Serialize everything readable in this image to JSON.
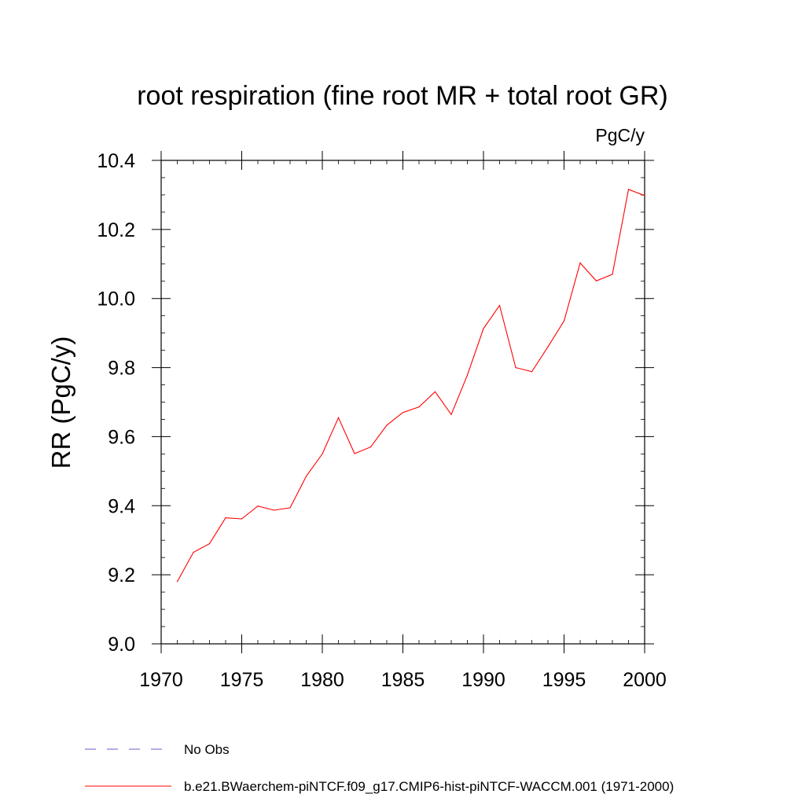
{
  "chart_data": {
    "type": "line",
    "title": "root respiration (fine root MR + total root GR)",
    "units": "PgC/y",
    "xlabel": "",
    "ylabel": "RR  (PgC/y)",
    "xlim": [
      1970,
      2000
    ],
    "ylim": [
      9.0,
      10.4
    ],
    "x_ticks": [
      1970,
      1975,
      1980,
      1985,
      1990,
      1995,
      2000
    ],
    "x_tick_labels": [
      "1970",
      "1975",
      "1980",
      "1985",
      "1990",
      "1995",
      "2000"
    ],
    "y_ticks": [
      9.0,
      9.2,
      9.4,
      9.6,
      9.8,
      10.0,
      10.2,
      10.4
    ],
    "y_tick_labels": [
      "9.0",
      "9.2",
      "9.4",
      "9.6",
      "9.8",
      "10.0",
      "10.2",
      "10.4"
    ],
    "grid": false,
    "legend_position": "bottom",
    "series": [
      {
        "name": "b.e21.BWaerchem-piNTCF.f09_g17.CMIP6-hist-piNTCF-WACCM.001 (1971-2000)",
        "color": "#ff0000",
        "line_style": "solid",
        "x": [
          1971,
          1972,
          1973,
          1974,
          1975,
          1976,
          1977,
          1978,
          1979,
          1980,
          1981,
          1982,
          1983,
          1984,
          1985,
          1986,
          1987,
          1988,
          1989,
          1990,
          1991,
          1992,
          1993,
          1994,
          1995,
          1996,
          1997,
          1998,
          1999,
          2000
        ],
        "values": [
          9.18,
          9.265,
          9.29,
          9.365,
          9.362,
          9.399,
          9.387,
          9.394,
          9.485,
          9.55,
          9.655,
          9.551,
          9.57,
          9.633,
          9.67,
          9.686,
          9.73,
          9.664,
          9.778,
          9.913,
          9.98,
          9.8,
          9.788,
          9.86,
          9.935,
          10.103,
          10.051,
          10.07,
          10.316,
          10.298
        ]
      }
    ],
    "legend": [
      {
        "label": "No Obs",
        "color": "#6a5acd",
        "line_style": "dashed"
      },
      {
        "label": "b.e21.BWaerchem-piNTCF.f09_g17.CMIP6-hist-piNTCF-WACCM.001 (1971-2000)",
        "color": "#ff0000",
        "line_style": "solid"
      }
    ]
  }
}
